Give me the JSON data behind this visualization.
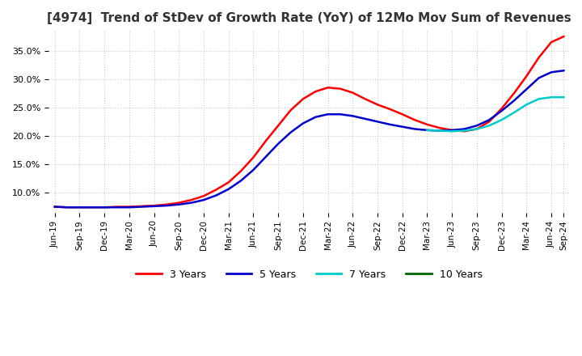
{
  "title": "[4974]  Trend of StDev of Growth Rate (YoY) of 12Mo Mov Sum of Revenues",
  "title_fontsize": 11,
  "background_color": "#ffffff",
  "grid_color": "#cccccc",
  "ylim": [
    0.065,
    0.385
  ],
  "yticks": [
    0.1,
    0.15,
    0.2,
    0.25,
    0.3,
    0.35
  ],
  "lines": {
    "3 Years": {
      "color": "#ff0000",
      "data": [
        0.075,
        0.074,
        0.074,
        0.074,
        0.074,
        0.075,
        0.075,
        0.076,
        0.077,
        0.079,
        0.082,
        0.087,
        0.094,
        0.105,
        0.118,
        0.138,
        0.162,
        0.191,
        0.218,
        0.245,
        0.265,
        0.278,
        0.285,
        0.283,
        0.276,
        0.265,
        0.255,
        0.247,
        0.238,
        0.228,
        0.22,
        0.214,
        0.21,
        0.208,
        0.212,
        0.225,
        0.248,
        0.275,
        0.305,
        0.338,
        0.365,
        0.375
      ]
    },
    "5 Years": {
      "color": "#0000cc",
      "data": [
        0.075,
        0.074,
        0.074,
        0.074,
        0.074,
        0.074,
        0.074,
        0.075,
        0.076,
        0.077,
        0.079,
        0.082,
        0.087,
        0.095,
        0.106,
        0.121,
        0.14,
        0.163,
        0.186,
        0.206,
        0.222,
        0.233,
        0.238,
        0.238,
        0.235,
        0.23,
        0.225,
        0.22,
        0.216,
        0.212,
        0.21,
        0.209,
        0.21,
        0.212,
        0.218,
        0.228,
        0.244,
        0.262,
        0.282,
        0.302,
        0.312,
        0.315
      ]
    },
    "7 Years": {
      "color": "#00cccc",
      "data": [
        null,
        null,
        null,
        null,
        null,
        null,
        null,
        null,
        null,
        null,
        null,
        null,
        null,
        null,
        null,
        null,
        null,
        null,
        null,
        null,
        null,
        null,
        null,
        null,
        null,
        null,
        null,
        null,
        null,
        null,
        0.21,
        0.209,
        0.208,
        0.209,
        0.212,
        0.218,
        0.228,
        0.241,
        0.255,
        0.265,
        0.268,
        0.268
      ]
    },
    "10 Years": {
      "color": "#006600",
      "data": [
        null,
        null,
        null,
        null,
        null,
        null,
        null,
        null,
        null,
        null,
        null,
        null,
        null,
        null,
        null,
        null,
        null,
        null,
        null,
        null,
        null,
        null,
        null,
        null,
        null,
        null,
        null,
        null,
        null,
        null,
        null,
        null,
        null,
        null,
        null,
        null,
        null,
        null,
        null,
        null,
        null,
        null
      ]
    }
  },
  "xtick_labels": [
    "Jun-19",
    "Sep-19",
    "Dec-19",
    "Mar-20",
    "Jun-20",
    "Sep-20",
    "Dec-20",
    "Mar-21",
    "Jun-21",
    "Sep-21",
    "Dec-21",
    "Mar-22",
    "Jun-22",
    "Sep-22",
    "Dec-22",
    "Mar-23",
    "Jun-23",
    "Sep-23",
    "Dec-23",
    "Mar-24",
    "Jun-24",
    "Sep-24"
  ],
  "legend_labels": [
    "3 Years",
    "5 Years",
    "7 Years",
    "10 Years"
  ],
  "legend_colors": [
    "#ff0000",
    "#0000cc",
    "#00cccc",
    "#006600"
  ]
}
